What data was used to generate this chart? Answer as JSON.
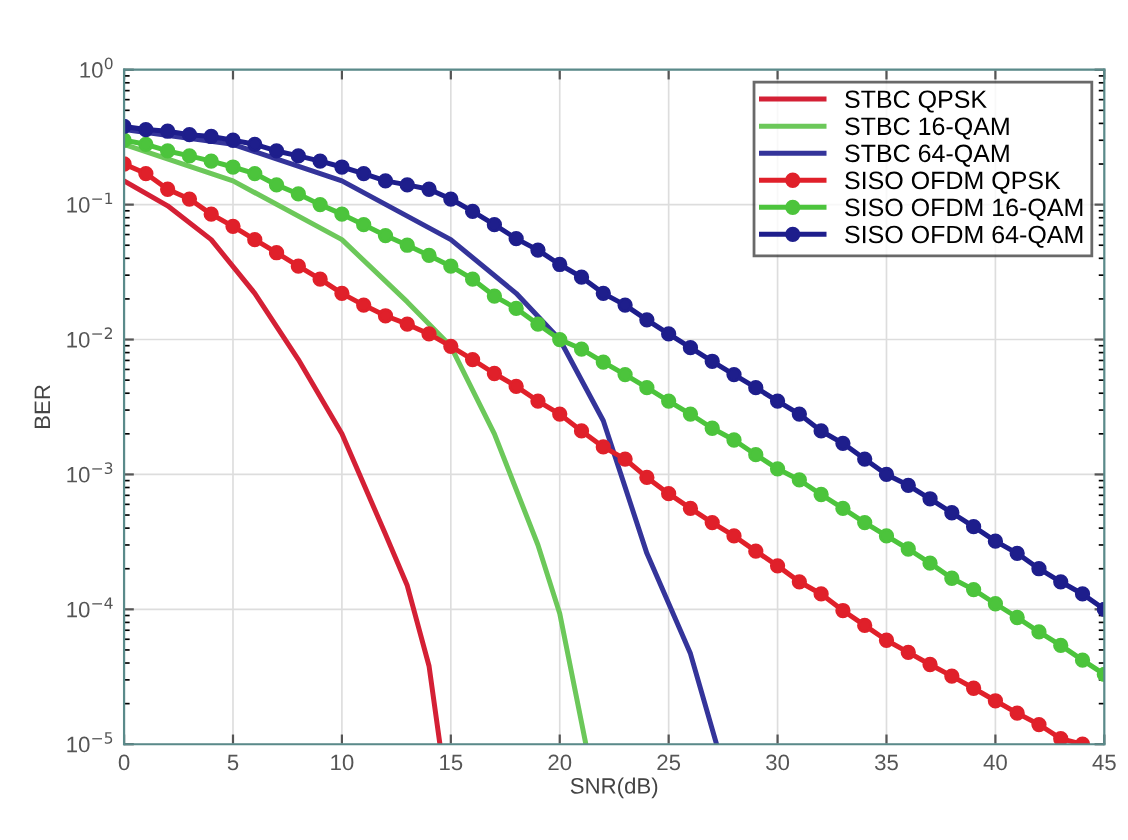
{
  "chart_data": {
    "type": "line",
    "xlabel": "SNR(dB)",
    "ylabel": "BER",
    "log": "y",
    "grid": true,
    "legend": "top right",
    "xlim": [
      0,
      45
    ],
    "xticks": [
      0,
      5,
      10,
      15,
      20,
      25,
      30,
      35,
      40,
      45
    ],
    "ylim": [
      1e-05,
      1
    ],
    "yticks": [
      {
        "value": 1e-05,
        "label": "10$^{−5}$"
      },
      {
        "value": 0.0001,
        "label": "10$^{−4}$"
      },
      {
        "value": 0.001,
        "label": "10$^{−3}$"
      },
      {
        "value": 0.01,
        "label": "10$^{−2}$"
      },
      {
        "value": 0.1,
        "label": "10$^{−1}$"
      },
      {
        "value": 1,
        "label": "10$^{0}$"
      }
    ],
    "series": [
      {
        "name": "STBC QPSK",
        "color": "#d42035",
        "marker": "none",
        "x": [
          0,
          2,
          4,
          6,
          8,
          10,
          12,
          13,
          14,
          14.5
        ],
        "values": [
          0.15,
          0.098,
          0.055,
          0.022,
          0.0071,
          0.002,
          0.00036,
          0.00015,
          3.8e-05,
          1e-05
        ]
      },
      {
        "name": "STBC 16-QAM",
        "color": "#6cc85a",
        "marker": "none",
        "x": [
          0,
          5,
          10,
          13,
          15,
          17,
          19,
          20,
          21.2
        ],
        "values": [
          0.28,
          0.15,
          0.055,
          0.019,
          0.0089,
          0.002,
          0.0003,
          9.3e-05,
          1e-05
        ]
      },
      {
        "name": "STBC 64-QAM",
        "color": "#34349a",
        "marker": "none",
        "x": [
          0,
          5,
          10,
          15,
          18,
          20,
          22,
          24,
          26,
          27.2
        ],
        "values": [
          0.36,
          0.28,
          0.15,
          0.055,
          0.022,
          0.01,
          0.0025,
          0.00026,
          4.7e-05,
          1e-05
        ]
      },
      {
        "name": "SISO OFDM QPSK",
        "color": "#e0202a",
        "marker": "circle",
        "x": [
          0,
          1,
          2,
          3,
          4,
          5,
          6,
          7,
          8,
          9,
          10,
          11,
          12,
          13,
          14,
          15,
          16,
          17,
          18,
          19,
          20,
          21,
          22,
          23,
          24,
          25,
          26,
          27,
          28,
          29,
          30,
          31,
          32,
          33,
          34,
          35,
          36,
          37,
          38,
          39,
          40,
          41,
          42,
          43,
          44
        ],
        "values": [
          0.2,
          0.17,
          0.13,
          0.11,
          0.085,
          0.069,
          0.055,
          0.044,
          0.035,
          0.028,
          0.022,
          0.018,
          0.015,
          0.013,
          0.011,
          0.0089,
          0.0071,
          0.0056,
          0.0045,
          0.0035,
          0.0028,
          0.0021,
          0.0016,
          0.0013,
          0.00095,
          0.00072,
          0.00056,
          0.00044,
          0.00035,
          0.00027,
          0.00021,
          0.00016,
          0.00013,
          9.8e-05,
          7.6e-05,
          5.9e-05,
          4.8e-05,
          3.9e-05,
          3.2e-05,
          2.6e-05,
          2.1e-05,
          1.7e-05,
          1.4e-05,
          1.1e-05,
          1e-05
        ]
      },
      {
        "name": "SISO OFDM 16-QAM",
        "color": "#4cc43c",
        "marker": "circle",
        "x": [
          0,
          1,
          2,
          3,
          4,
          5,
          6,
          7,
          8,
          9,
          10,
          11,
          12,
          13,
          14,
          15,
          16,
          17,
          18,
          19,
          20,
          21,
          22,
          23,
          24,
          25,
          26,
          27,
          28,
          29,
          30,
          31,
          32,
          33,
          34,
          35,
          36,
          37,
          38,
          39,
          40,
          41,
          42,
          43,
          44,
          45
        ],
        "values": [
          0.3,
          0.28,
          0.25,
          0.23,
          0.21,
          0.19,
          0.17,
          0.14,
          0.12,
          0.1,
          0.085,
          0.071,
          0.059,
          0.05,
          0.042,
          0.035,
          0.028,
          0.021,
          0.017,
          0.013,
          0.01,
          0.0085,
          0.0068,
          0.0055,
          0.0044,
          0.0035,
          0.0028,
          0.0022,
          0.0018,
          0.0014,
          0.0011,
          0.00091,
          0.00071,
          0.00056,
          0.00044,
          0.00035,
          0.00028,
          0.00022,
          0.00017,
          0.00014,
          0.00011,
          8.7e-05,
          6.8e-05,
          5.4e-05,
          4.2e-05,
          3.3e-05
        ]
      },
      {
        "name": "SISO OFDM 64-QAM",
        "color": "#1e1e8c",
        "marker": "circle",
        "x": [
          0,
          1,
          2,
          3,
          4,
          5,
          6,
          7,
          8,
          9,
          10,
          11,
          12,
          13,
          14,
          15,
          16,
          17,
          18,
          19,
          20,
          21,
          22,
          23,
          24,
          25,
          26,
          27,
          28,
          29,
          30,
          31,
          32,
          33,
          34,
          35,
          36,
          37,
          38,
          39,
          40,
          41,
          42,
          43,
          44,
          45
        ],
        "values": [
          0.38,
          0.36,
          0.35,
          0.33,
          0.32,
          0.3,
          0.28,
          0.25,
          0.23,
          0.21,
          0.19,
          0.17,
          0.15,
          0.14,
          0.13,
          0.11,
          0.089,
          0.071,
          0.056,
          0.046,
          0.036,
          0.029,
          0.022,
          0.018,
          0.014,
          0.011,
          0.0087,
          0.0069,
          0.0055,
          0.0044,
          0.0035,
          0.0028,
          0.0021,
          0.0017,
          0.0013,
          0.001,
          0.00083,
          0.00066,
          0.00052,
          0.00041,
          0.00032,
          0.00026,
          0.0002,
          0.00016,
          0.00013,
          0.0001
        ]
      }
    ]
  }
}
